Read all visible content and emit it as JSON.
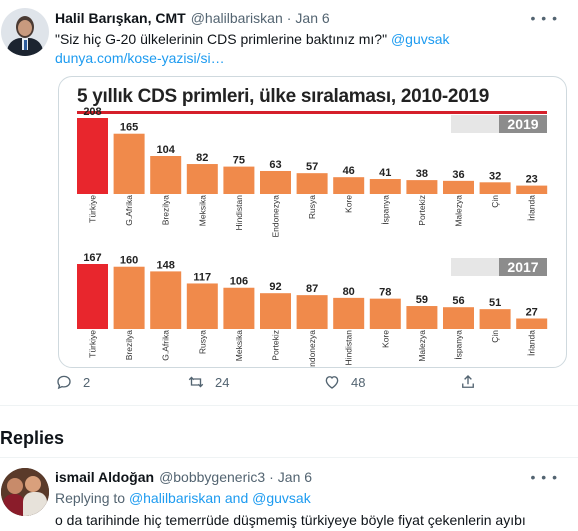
{
  "tweet": {
    "author_name": "Halil Barışkan, CMT",
    "author_handle": "@halilbariskan",
    "separator": "·",
    "date": "Jan 6",
    "more_label": "• • •",
    "text_quote": "\"Siz hiç G-20 ülkelerinin CDS primlerine baktınız mı?\"",
    "mention": "@guvsak",
    "url_text": "dunya.com/kose-yazisi/si…"
  },
  "chart_data": {
    "type": "bar",
    "title": "5 yıllık CDS primleri, ülke sıralaması, 2010-2019",
    "panels": [
      {
        "year_label": "2019",
        "categories": [
          "Türkiye",
          "G.Afrika",
          "Brezilya",
          "Meksika",
          "Hindistan",
          "Endonezya",
          "Rusya",
          "Kore",
          "İspanya",
          "Portekiz",
          "Malezya",
          "Çin",
          "İrlanda"
        ],
        "values": [
          208,
          165,
          104,
          82,
          75,
          63,
          57,
          46,
          41,
          38,
          36,
          32,
          23
        ]
      },
      {
        "year_label": "2017",
        "categories": [
          "Türkiye",
          "Brezilya",
          "G.Afrika",
          "Rusya",
          "Meksika",
          "Portekiz",
          "Endonezya",
          "Hindistan",
          "Kore",
          "Malezya",
          "İspanya",
          "Çin",
          "İrlanda"
        ],
        "values": [
          167,
          160,
          148,
          117,
          106,
          92,
          87,
          80,
          78,
          59,
          56,
          51,
          27
        ]
      }
    ],
    "colors": {
      "highlight": "#e8262d",
      "bar": "#f08a4b",
      "year_box": "#8c8c8c"
    }
  },
  "actions": {
    "reply_count": "2",
    "retweet_count": "24",
    "like_count": "48",
    "icons": [
      "reply-icon",
      "retweet-icon",
      "heart-icon",
      "share-icon"
    ]
  },
  "replies_heading": "Replies",
  "reply": {
    "author_name": "ismail Aldoğan",
    "author_handle": "@bobbygeneric3",
    "separator": "·",
    "date": "Jan 6",
    "more_label": "• • •",
    "replying_prefix": "Replying to",
    "replying_user1": "@halilbariskan",
    "replying_and": "and",
    "replying_user2": "@guvsak",
    "text": "o da tarihinde hiç temerrüde düşmemiş türkiyeye böyle fiyat çekenlerin ayıbı"
  },
  "colors": {
    "link": "#1d9bf0",
    "muted": "#536471",
    "text": "#0f1419"
  }
}
